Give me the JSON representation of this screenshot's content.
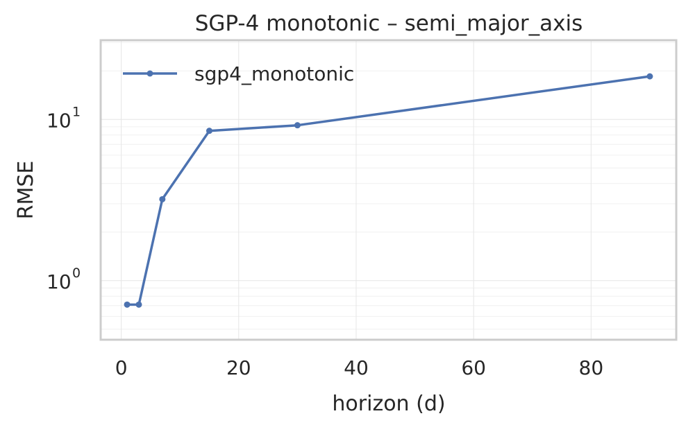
{
  "chart_data": {
    "type": "line",
    "title": "SGP-4 monotonic – semi_major_axis",
    "xlabel": "horizon (d)",
    "ylabel": "RMSE",
    "x_ticks": [
      "0",
      "20",
      "40",
      "60",
      "80"
    ],
    "y_ticks": [
      {
        "value": 1,
        "base": "10",
        "exp": "0"
      },
      {
        "value": 10,
        "base": "10",
        "exp": "1"
      }
    ],
    "xlim": [
      -3.5,
      94.5
    ],
    "ylim": [
      0.43,
      31
    ],
    "y_scale": "log",
    "grid": true,
    "legend_position": "top-left",
    "series": [
      {
        "name": "sgp4_monotonic",
        "color": "#4c72b0",
        "marker": "circle",
        "x": [
          1,
          3,
          7,
          15,
          30,
          90
        ],
        "y": [
          0.71,
          0.71,
          3.2,
          8.5,
          9.2,
          18.5
        ]
      }
    ]
  }
}
